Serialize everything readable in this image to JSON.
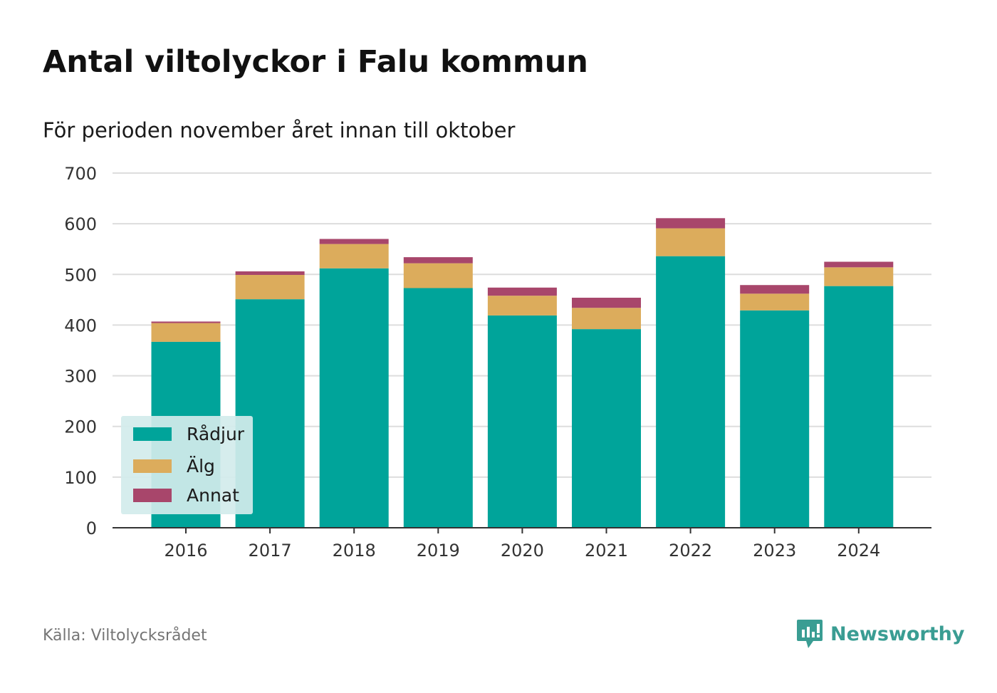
{
  "title": "Antal viltolyckor i Falu kommun",
  "subtitle": "För perioden november året innan till oktober",
  "source": "Källa: Viltolycksrådet",
  "brand": {
    "name": "Newsworthy",
    "icon": "newsworthy-logo-icon",
    "color": "#3a9d93"
  },
  "colors": {
    "Rådjur": "#00a49a",
    "Älg": "#dcac5c",
    "Annat": "#a8466b",
    "grid": "#dddddd",
    "axis": "#333333"
  },
  "legend": {
    "items": [
      "Rådjur",
      "Älg",
      "Annat"
    ]
  },
  "chart_data": {
    "type": "bar",
    "stacked": true,
    "categories": [
      "2016",
      "2017",
      "2018",
      "2019",
      "2020",
      "2021",
      "2022",
      "2023",
      "2024"
    ],
    "series": [
      {
        "name": "Rådjur",
        "values": [
          367,
          451,
          512,
          473,
          419,
          392,
          536,
          429,
          477
        ]
      },
      {
        "name": "Älg",
        "values": [
          37,
          48,
          48,
          49,
          39,
          42,
          55,
          33,
          37
        ]
      },
      {
        "name": "Annat",
        "values": [
          3,
          7,
          10,
          12,
          16,
          20,
          20,
          17,
          11
        ]
      }
    ],
    "yticks": [
      0,
      100,
      200,
      300,
      400,
      500,
      600,
      700
    ],
    "ylim": [
      0,
      700
    ],
    "grid": true,
    "legend_position": "bottom-left"
  }
}
